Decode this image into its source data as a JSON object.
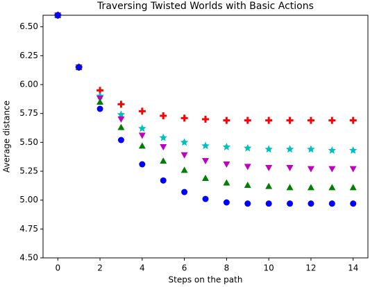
{
  "chart_data": {
    "type": "scatter",
    "title": "Traversing Twisted Worlds with Basic Actions",
    "x_label": "Steps on the path",
    "y_label": "Average distance",
    "x": [
      0,
      1,
      2,
      3,
      4,
      5,
      6,
      7,
      8,
      9,
      10,
      11,
      12,
      13,
      14
    ],
    "series": [
      {
        "color": "#ff0000",
        "marker": "plus",
        "values": [
          6.6,
          6.15,
          5.95,
          5.83,
          5.77,
          5.73,
          5.71,
          5.7,
          5.69,
          5.69,
          5.69,
          5.69,
          5.69,
          5.69,
          5.69
        ]
      },
      {
        "color": "#00bfbf",
        "marker": "star",
        "values": [
          6.6,
          6.15,
          5.9,
          5.74,
          5.62,
          5.54,
          5.5,
          5.47,
          5.46,
          5.45,
          5.44,
          5.44,
          5.44,
          5.43,
          5.43
        ]
      },
      {
        "color": "#bf00bf",
        "marker": "triangle-down",
        "values": [
          6.6,
          6.15,
          5.88,
          5.7,
          5.56,
          5.46,
          5.39,
          5.34,
          5.31,
          5.29,
          5.28,
          5.28,
          5.27,
          5.27,
          5.27
        ]
      },
      {
        "color": "#008000",
        "marker": "triangle-up",
        "values": [
          6.6,
          6.15,
          5.85,
          5.63,
          5.47,
          5.34,
          5.26,
          5.19,
          5.15,
          5.13,
          5.12,
          5.11,
          5.11,
          5.11,
          5.11
        ]
      },
      {
        "color": "#0000ff",
        "marker": "circle",
        "values": [
          6.6,
          6.15,
          5.79,
          5.52,
          5.31,
          5.17,
          5.07,
          5.01,
          4.98,
          4.97,
          4.97,
          4.97,
          4.97,
          4.97,
          4.97
        ]
      }
    ],
    "xlim": [
      -0.7,
      14.7
    ],
    "xticks": [
      0,
      2,
      4,
      6,
      8,
      10,
      12,
      14
    ],
    "ylim": [
      4.5,
      6.6
    ],
    "yticks": [
      {
        "value": 4.5,
        "label": "4.50"
      },
      {
        "value": 4.75,
        "label": "4.75"
      },
      {
        "value": 5.0,
        "label": "5.00"
      },
      {
        "value": 5.25,
        "label": "5.25"
      },
      {
        "value": 5.5,
        "label": "5.50"
      },
      {
        "value": 5.75,
        "label": "5.75"
      },
      {
        "value": 6.0,
        "label": "6.00"
      },
      {
        "value": 6.25,
        "label": "6.25"
      },
      {
        "value": 6.5,
        "label": "6.50"
      }
    ],
    "grid": false
  }
}
